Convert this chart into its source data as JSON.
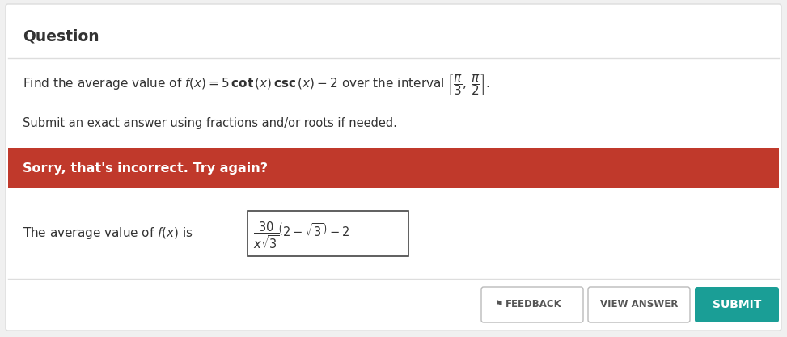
{
  "bg_color": "#f0f0f0",
  "card_color": "#ffffff",
  "title_text": "Question",
  "title_fontsize": 13.5,
  "question_line2": "Submit an exact answer using fractions and/or roots if needed.",
  "error_bg": "#c0392b",
  "error_text": "Sorry, that's incorrect. Try again?",
  "feedback_btn_text": "FEEDBACK",
  "view_answer_btn_text": "VIEW ANSWER",
  "submit_btn_text": "SUBMIT",
  "submit_btn_color": "#1a9e96",
  "btn_border_color": "#cccccc",
  "text_color": "#333333",
  "separator_color": "#dddddd"
}
